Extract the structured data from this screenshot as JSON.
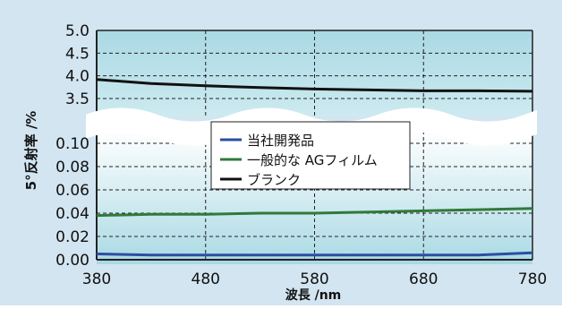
{
  "chart_data": {
    "type": "line",
    "ylabel": "5°反射率 /%",
    "xlabel": "波長 /nm",
    "x_ticks": [
      "380",
      "480",
      "580",
      "680",
      "780"
    ],
    "xlim": [
      380,
      780
    ],
    "y_axis_break": true,
    "upper_panel": {
      "ylim": [
        3.5,
        5.0
      ],
      "y_ticks": [
        "3.5",
        "4.0",
        "4.5",
        "5.0"
      ]
    },
    "lower_panel": {
      "ylim": [
        0.0,
        0.1
      ],
      "y_ticks": [
        "0.00",
        "0.02",
        "0.04",
        "0.06",
        "0.08",
        "0.10"
      ]
    },
    "series": [
      {
        "name": "当社開発品",
        "color": "#2a4fa3",
        "panel": "lower",
        "x": [
          380,
          430,
          480,
          530,
          580,
          630,
          680,
          730,
          780
        ],
        "y": [
          0.005,
          0.004,
          0.004,
          0.004,
          0.004,
          0.004,
          0.004,
          0.004,
          0.006
        ]
      },
      {
        "name": "一般的な AGフィルム",
        "color": "#2f7a3a",
        "panel": "lower",
        "x": [
          380,
          430,
          480,
          530,
          580,
          630,
          680,
          730,
          780
        ],
        "y": [
          0.038,
          0.039,
          0.039,
          0.04,
          0.04,
          0.041,
          0.042,
          0.043,
          0.044
        ]
      },
      {
        "name": "ブランク",
        "color": "#111111",
        "panel": "upper",
        "x": [
          380,
          430,
          480,
          530,
          580,
          630,
          680,
          730,
          780
        ],
        "y": [
          3.92,
          3.83,
          3.78,
          3.74,
          3.71,
          3.69,
          3.67,
          3.67,
          3.66
        ]
      }
    ],
    "legend_position": "center",
    "grid": true
  }
}
